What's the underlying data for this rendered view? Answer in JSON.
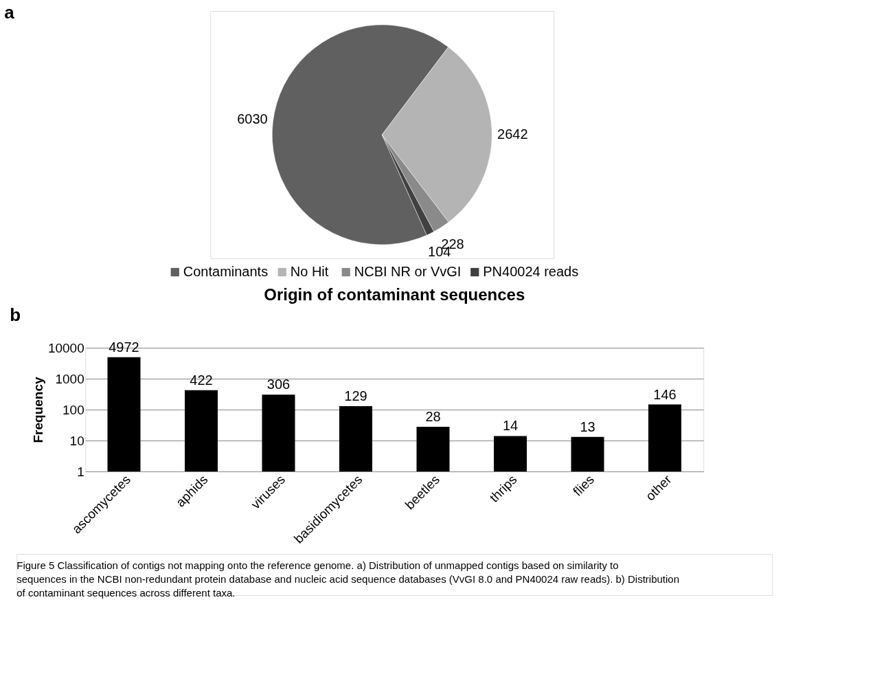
{
  "chart_data": [
    {
      "type": "pie",
      "categories": [
        "Contaminants",
        "No Hit",
        "NCBI NR or VvGI",
        "PN40024 reads"
      ],
      "values": [
        6030,
        2642,
        228,
        104
      ],
      "colors": [
        "#606060",
        "#b4b4b4",
        "#8a8a8a",
        "#404040"
      ],
      "data_labels": true,
      "legend": "bottom",
      "annotations": [
        "a"
      ]
    },
    {
      "type": "bar",
      "title": "Origin of contaminant sequences",
      "ylabel": "Frequency",
      "categories": [
        "ascomycetes",
        "aphids",
        "viruses",
        "basidiomycetes",
        "beetles",
        "thrips",
        "flies",
        "other"
      ],
      "values": [
        4972,
        422,
        306,
        129,
        28,
        14,
        13,
        146
      ],
      "color": "#000000",
      "log": true,
      "ylim": [
        1,
        10000
      ],
      "yticks": [
        1,
        10,
        100,
        1000,
        10000
      ],
      "grid": "y",
      "data_labels": true,
      "annotations": [
        "b",
        "Figure 5 Classification of contigs not mapping onto the reference genome. a) Distribution of unmapped contigs based on similarity to sequences in the NCBI non-redundant protein database and nucleic acid sequence databases (VvGI 8.0 and PN40024 raw reads). b) Distribution of contaminant sequences across different taxa."
      ]
    }
  ]
}
